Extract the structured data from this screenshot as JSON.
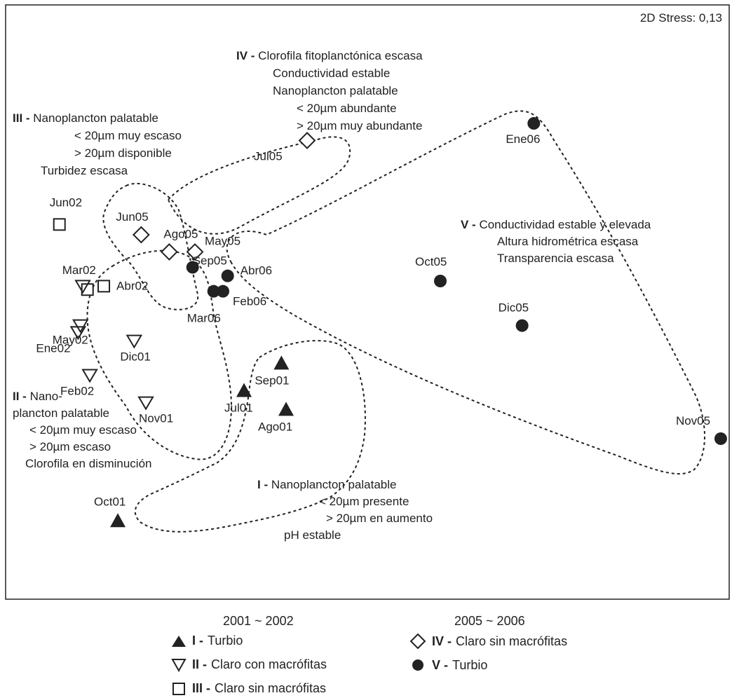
{
  "chart_data": {
    "type": "scatter",
    "stress_label": "2D Stress: 0,13",
    "symbols": {
      "I": "triangle-up-filled",
      "II": "triangle-down-open",
      "III": "square-open",
      "IV": "diamond-open",
      "V": "circle-filled"
    },
    "points": [
      {
        "label": "Jun02",
        "group": "III",
        "x": -1.3,
        "y": 0.59
      },
      {
        "label": "Abr02",
        "group": "III",
        "x": -1.11,
        "y": 0.23
      },
      {
        "label": "Mar02",
        "group": "III",
        "x": -1.18,
        "y": 0.21
      },
      {
        "label": "Mar02",
        "group": "II",
        "x": -1.2,
        "y": 0.23
      },
      {
        "label": "May02",
        "group": "II",
        "x": -1.21,
        "y": 0.0
      },
      {
        "label": "Ene02",
        "group": "II",
        "x": -1.22,
        "y": -0.04
      },
      {
        "label": "Dic01",
        "group": "II",
        "x": -0.98,
        "y": -0.09
      },
      {
        "label": "Feb02",
        "group": "II",
        "x": -1.17,
        "y": -0.29
      },
      {
        "label": "Nov01",
        "group": "II",
        "x": -0.93,
        "y": -0.45
      },
      {
        "label": "Sep01",
        "group": "I",
        "x": -0.35,
        "y": -0.22
      },
      {
        "label": "Jul01",
        "group": "I",
        "x": -0.51,
        "y": -0.38
      },
      {
        "label": "Ago01",
        "group": "I",
        "x": -0.33,
        "y": -0.49
      },
      {
        "label": "Oct01",
        "group": "I",
        "x": -1.05,
        "y": -1.14
      },
      {
        "label": "Jul05",
        "group": "IV",
        "x": -0.24,
        "y": 1.08
      },
      {
        "label": "Jun05",
        "group": "IV",
        "x": -0.95,
        "y": 0.53
      },
      {
        "label": "Ago05",
        "group": "IV",
        "x": -0.83,
        "y": 0.43
      },
      {
        "label": "May05",
        "group": "IV",
        "x": -0.72,
        "y": 0.43
      },
      {
        "label": "Sep05",
        "group": "V",
        "x": -0.73,
        "y": 0.34
      },
      {
        "label": "Abr06",
        "group": "V",
        "x": -0.58,
        "y": 0.29
      },
      {
        "label": "Feb06",
        "group": "V",
        "x": -0.6,
        "y": 0.2
      },
      {
        "label": "Mar06",
        "group": "V",
        "x": -0.64,
        "y": 0.2
      },
      {
        "label": "Oct05",
        "group": "V",
        "x": 0.33,
        "y": 0.26
      },
      {
        "label": "Dic05",
        "group": "V",
        "x": 0.68,
        "y": 0.0
      },
      {
        "label": "Ene06",
        "group": "V",
        "x": 0.73,
        "y": 1.18
      },
      {
        "label": "Nov05",
        "group": "V",
        "x": 1.53,
        "y": -0.66
      }
    ],
    "groups": [
      {
        "id": "III",
        "name": "III",
        "lines": [
          "Nanoplancton palatable",
          "< 20µm muy escaso",
          "> 20µm disponible",
          "Turbidez escasa"
        ]
      },
      {
        "id": "IV",
        "name": "IV",
        "lines": [
          "Clorofila fitoplanctónica  escasa",
          "Conductividad estable",
          "Nanoplancton palatable",
          "< 20µm abundante",
          "> 20µm muy abundante"
        ]
      },
      {
        "id": "V",
        "name": "V",
        "lines": [
          "Conductividad estable y elevada",
          "Altura hidrométrica escasa",
          "Transparencia escasa"
        ]
      },
      {
        "id": "II",
        "name": "II",
        "lines": [
          "Nano-",
          "plancton palatable",
          "< 20µm muy escaso",
          "> 20µm escaso",
          "Clorofila en disminución"
        ]
      },
      {
        "id": "I",
        "name": "I",
        "lines": [
          "Nanoplancton palatable",
          "< 20µm presente",
          "> 20µm en aumento",
          "pH estable"
        ]
      }
    ]
  },
  "legend": {
    "period_a": "2001 ~ 2002",
    "period_b": "2005 ~ 2006",
    "items": [
      {
        "code": "I -",
        "text": "Turbio",
        "symbol": "triangle-up-filled"
      },
      {
        "code": "II -",
        "text": "Claro con macrófitas",
        "symbol": "triangle-down-open"
      },
      {
        "code": "III -",
        "text": "Claro sin macrófitas",
        "symbol": "square-open"
      },
      {
        "code": "IV -",
        "text": "Claro sin macrófitas",
        "symbol": "diamond-open"
      },
      {
        "code": "V -",
        "text": "Turbio",
        "symbol": "circle-filled"
      }
    ]
  }
}
